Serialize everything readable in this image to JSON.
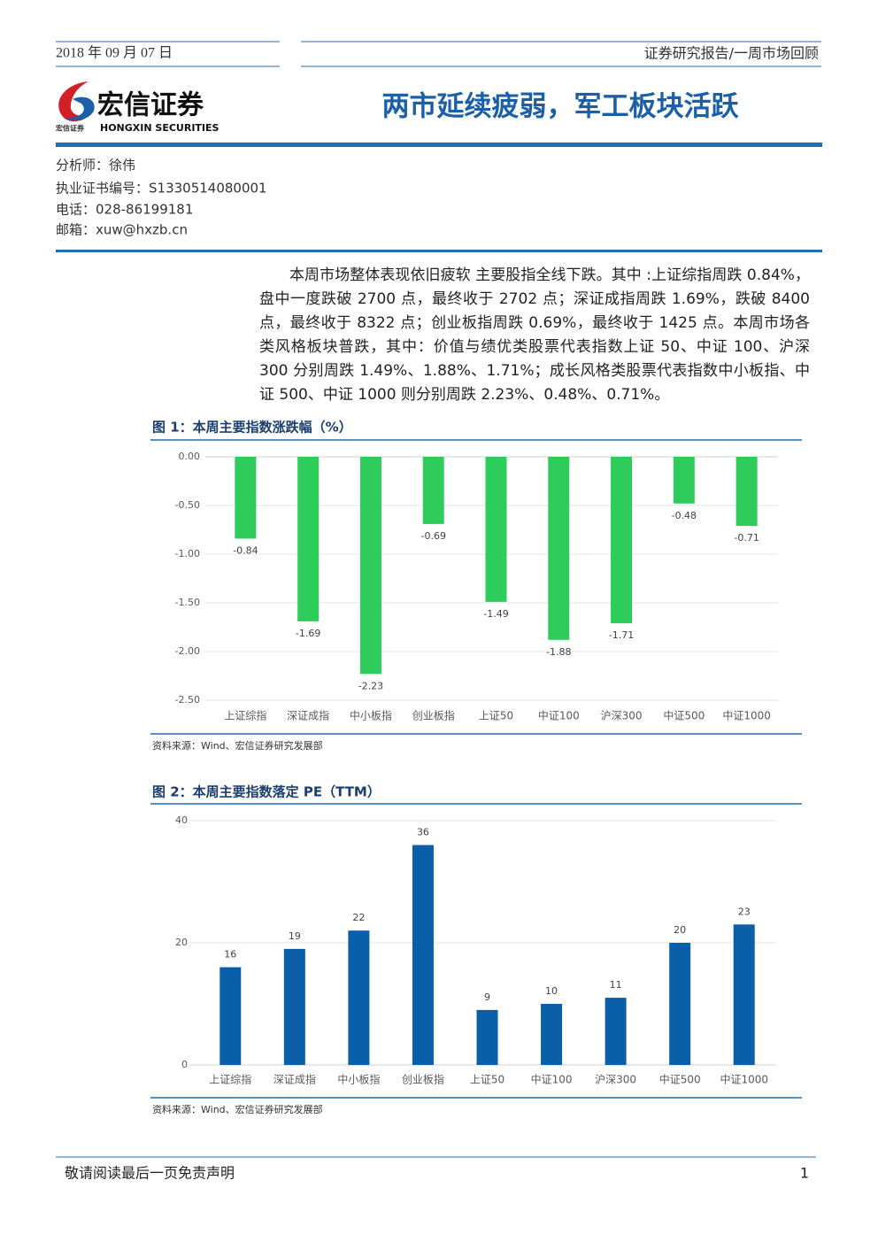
{
  "header": {
    "date": "2018 年 09 月 07 日",
    "report_type": "证券研究报告/一周市场回顾"
  },
  "logo": {
    "name_cn": "宏信证券",
    "name_en": "HONGXIN SECURITIES",
    "small": "宏信证券"
  },
  "title": "两市延续疲弱，军工板块活跃",
  "analyst": {
    "name": "分析师：徐伟",
    "cert": "执业证书编号：S1330514080001",
    "phone": "电话：028-86199181",
    "email": "邮箱：xuw@hxzb.cn"
  },
  "paragraph": "本周市场整体表现依旧疲软 主要股指全线下跌。其中 :上证综指周跌 0.84%，盘中一度跌破 2700 点，最终收于 2702 点；深证成指周跌 1.69%，跌破 8400 点，最终收于 8322 点；创业板指周跌 0.69%，最终收于 1425 点。本周市场各类风格板块普跌，其中：价值与绩优类股票代表指数上证 50、中证 100、沪深 300 分别周跌 1.49%、1.88%、1.71%；成长风格类股票代表指数中小板指、中证 500、中证 1000 则分别周跌 2.23%、0.48%、0.71%。",
  "chart_data": [
    {
      "type": "bar",
      "title": "图 1：本周主要指数涨跌幅（%）",
      "source": "资料来源：Wind、宏信证券研究发展部",
      "categories": [
        "上证综指",
        "深证成指",
        "中小板指",
        "创业板指",
        "上证50",
        "中证100",
        "沪深300",
        "中证500",
        "中证1000"
      ],
      "values": [
        -0.84,
        -1.69,
        -2.23,
        -0.69,
        -1.49,
        -1.88,
        -1.71,
        -0.48,
        -0.71
      ],
      "color": "#2ecc5a",
      "ylim": [
        -2.5,
        0
      ],
      "yticks": [
        {
          "value": 0,
          "label": "0.00"
        },
        {
          "value": -0.5,
          "label": "-0.50"
        },
        {
          "value": -1,
          "label": "-1.00"
        },
        {
          "value": -1.5,
          "label": "-1.50"
        },
        {
          "value": -2,
          "label": "-2.00"
        },
        {
          "value": -2.5,
          "label": "-2.50"
        }
      ],
      "grid": true
    },
    {
      "type": "bar",
      "title": "图 2：本周主要指数落定 PE（TTM）",
      "source": "资料来源：Wind、宏信证券研究发展部",
      "categories": [
        "上证综指",
        "深证成指",
        "中小板指",
        "创业板指",
        "上证50",
        "中证100",
        "沪深300",
        "中证500",
        "中证1000"
      ],
      "values": [
        16,
        19,
        22,
        36,
        9,
        10,
        11,
        20,
        23
      ],
      "color": "#0b5fa8",
      "ylim": [
        0,
        40
      ],
      "yticks": [
        0,
        20,
        40
      ],
      "grid": true
    }
  ],
  "footer": {
    "disclaimer": "敬请阅读最后一页免责声明",
    "page": "1"
  }
}
